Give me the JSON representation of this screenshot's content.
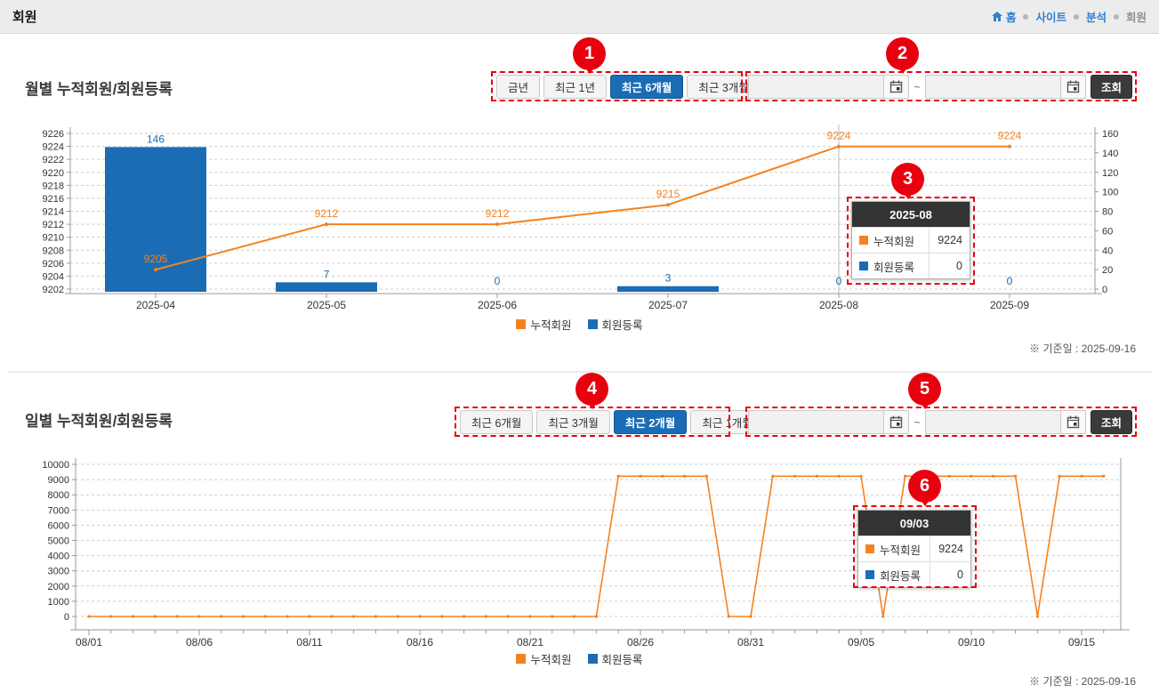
{
  "page": {
    "title": "회원",
    "breadcrumb": {
      "home": "홈",
      "site": "사이트",
      "analysis": "분석",
      "current": "회원"
    }
  },
  "colors": {
    "accent_blue": "#1a6cb4",
    "series_orange": "#f5821f",
    "series_blue": "#1a6cb4",
    "callout_red": "#e8000f",
    "breadcrumb_blue": "#2f80d0",
    "tooltip_header_bg": "#333333"
  },
  "monthly": {
    "title": "월별 누적회원/회원등록",
    "buttons": [
      {
        "label": "금년",
        "active": false
      },
      {
        "label": "최근 1년",
        "active": false
      },
      {
        "label": "최근 6개월",
        "active": true
      },
      {
        "label": "최근 3개월",
        "active": false
      }
    ],
    "date_from_value": "",
    "date_to_value": "",
    "separator": "~",
    "search_button": "조회",
    "tooltip": {
      "title": "2025-08",
      "rows": [
        {
          "label": "누적회원",
          "value": "9224"
        },
        {
          "label": "회원등록",
          "value": "0"
        }
      ]
    },
    "legend": [
      {
        "label": "누적회원"
      },
      {
        "label": "회원등록"
      }
    ],
    "ref_date": "※ 기준일 : 2025-09-16"
  },
  "daily": {
    "title": "일별 누적회원/회원등록",
    "buttons": [
      {
        "label": "최근 6개월",
        "active": false
      },
      {
        "label": "최근 3개월",
        "active": false
      },
      {
        "label": "최근 2개월",
        "active": true
      },
      {
        "label": "최근 1개월",
        "active": false
      }
    ],
    "date_from_value": "",
    "date_to_value": "",
    "separator": "~",
    "search_button": "조회",
    "tooltip": {
      "title": "09/03",
      "rows": [
        {
          "label": "누적회원",
          "value": "9224"
        },
        {
          "label": "회원등록",
          "value": "0"
        }
      ]
    },
    "legend": [
      {
        "label": "누적회원"
      },
      {
        "label": "회원등록"
      }
    ],
    "ref_date": "※ 기준일 : 2025-09-16"
  },
  "callouts": [
    {
      "n": "1"
    },
    {
      "n": "2"
    },
    {
      "n": "3"
    },
    {
      "n": "4"
    },
    {
      "n": "5"
    },
    {
      "n": "6"
    }
  ],
  "chart_data": [
    {
      "type": "bar",
      "title": "월별 누적회원/회원등록",
      "categories": [
        "2025-04",
        "2025-05",
        "2025-06",
        "2025-07",
        "2025-08",
        "2025-09"
      ],
      "series": [
        {
          "name": "누적회원",
          "type": "line",
          "axis": "left",
          "color": "#f5821f",
          "values": [
            9205,
            9212,
            9212,
            9215,
            9224,
            9224
          ]
        },
        {
          "name": "회원등록",
          "type": "bar",
          "axis": "right",
          "color": "#1a6cb4",
          "values": [
            146,
            7,
            0,
            3,
            0,
            0
          ]
        }
      ],
      "left_axis": {
        "min": 9202,
        "max": 9226,
        "step": 2
      },
      "right_axis": {
        "min": 0,
        "max": 160,
        "step": 20
      },
      "crosshair_category": "2025-08",
      "grid": true,
      "legend_position": "bottom"
    },
    {
      "type": "line",
      "title": "일별 누적회원/회원등록",
      "x": [
        "08/01",
        "08/02",
        "08/03",
        "08/04",
        "08/05",
        "08/06",
        "08/07",
        "08/08",
        "08/09",
        "08/10",
        "08/11",
        "08/12",
        "08/13",
        "08/14",
        "08/15",
        "08/16",
        "08/17",
        "08/18",
        "08/19",
        "08/20",
        "08/21",
        "08/22",
        "08/23",
        "08/24",
        "08/25",
        "08/26",
        "08/27",
        "08/28",
        "08/29",
        "08/30",
        "08/31",
        "09/01",
        "09/02",
        "09/03",
        "09/04",
        "09/05",
        "09/06",
        "09/07",
        "09/08",
        "09/09",
        "09/10",
        "09/11",
        "09/12",
        "09/13",
        "09/14",
        "09/15",
        "09/16"
      ],
      "x_tick_labels": [
        "08/01",
        "08/06",
        "08/11",
        "08/16",
        "08/21",
        "08/26",
        "08/31",
        "09/05",
        "09/10",
        "09/15"
      ],
      "series": [
        {
          "name": "누적회원",
          "type": "line",
          "color": "#f5821f",
          "values": [
            0,
            0,
            0,
            0,
            0,
            0,
            0,
            0,
            0,
            0,
            0,
            0,
            0,
            0,
            0,
            0,
            0,
            0,
            0,
            0,
            0,
            0,
            0,
            0,
            9224,
            9224,
            9224,
            9224,
            9224,
            0,
            0,
            9224,
            9224,
            9224,
            9224,
            9224,
            0,
            9224,
            9224,
            9224,
            9224,
            9224,
            9224,
            0,
            9224,
            9224,
            9224
          ]
        },
        {
          "name": "회원등록",
          "type": "bar",
          "color": "#1a6cb4",
          "values": [
            0,
            0,
            0,
            0,
            0,
            0,
            0,
            0,
            0,
            0,
            0,
            0,
            0,
            0,
            0,
            0,
            0,
            0,
            0,
            0,
            0,
            0,
            0,
            0,
            0,
            0,
            0,
            0,
            0,
            0,
            0,
            0,
            0,
            0,
            0,
            0,
            0,
            0,
            0,
            0,
            0,
            0,
            0,
            0,
            0,
            0,
            0
          ]
        }
      ],
      "y_axis": {
        "min": 0,
        "max": 10000,
        "step": 1000
      },
      "grid": true,
      "legend_position": "bottom"
    }
  ]
}
